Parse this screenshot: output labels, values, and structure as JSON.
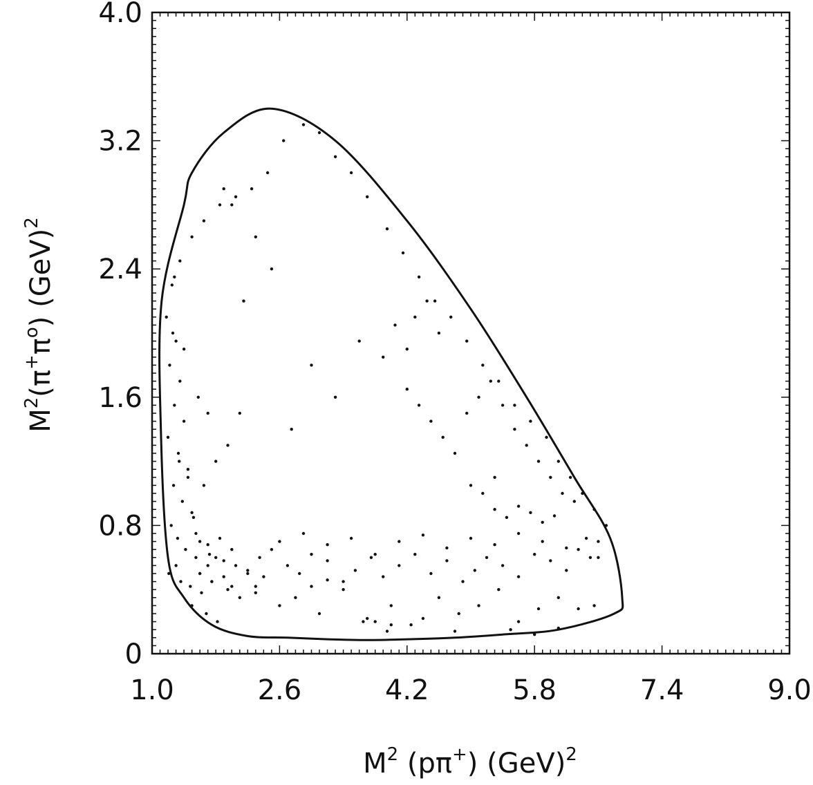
{
  "chart_data": {
    "type": "scatter",
    "title": "",
    "xlabel": {
      "base": "M",
      "sup": "2",
      "rest": " (pπ",
      "sup2": "+",
      "tail": ")  (GeV)",
      "sup3": "2"
    },
    "ylabel": {
      "base": "M",
      "sup": "2",
      "rest": "(π",
      "sup2": "+",
      "mid": "π",
      "sup3": "o",
      "tail": ")  (GeV)",
      "sup4": "2"
    },
    "xlim": [
      1.0,
      9.0
    ],
    "ylim": [
      0.0,
      4.0
    ],
    "x_ticks": [
      "1.0",
      "2.6",
      "4.2",
      "5.8",
      "7.4",
      "9.0"
    ],
    "y_ticks": [
      "0",
      "0.8",
      "1.6",
      "2.4",
      "3.2",
      "4.0"
    ],
    "grid": false,
    "boundary": {
      "x": [
        1.4,
        1.12,
        1.11,
        1.2,
        1.4,
        1.75,
        2.2,
        2.7,
        3.2,
        3.7,
        4.2,
        4.8,
        5.4,
        6.1,
        6.8,
        6.9,
        6.75,
        6.3,
        5.7,
        5.0,
        4.2,
        3.3,
        2.5,
        1.9,
        1.5
      ],
      "y": [
        2.8,
        2.2,
        1.4,
        0.6,
        0.35,
        0.18,
        0.11,
        0.1,
        0.09,
        0.085,
        0.09,
        0.1,
        0.12,
        0.15,
        0.25,
        0.35,
        0.72,
        1.1,
        1.6,
        2.15,
        2.7,
        3.2,
        3.4,
        3.25,
        3.0
      ]
    },
    "series": [
      {
        "x": [
          1.25,
          1.18,
          1.3,
          1.22,
          1.35,
          1.28,
          1.4,
          1.2,
          1.33,
          1.45,
          1.27,
          1.38,
          1.5,
          1.24,
          1.32,
          1.42,
          1.55,
          1.3,
          1.21,
          1.36,
          1.48,
          1.62,
          1.26,
          1.4,
          1.58,
          1.7,
          1.34,
          1.45,
          1.6,
          1.72,
          1.9,
          2.05,
          2.2,
          2.35,
          2.5,
          2.7,
          2.85,
          3.0,
          3.2,
          3.4,
          3.55,
          3.75,
          3.9,
          4.1,
          4.3,
          4.5,
          4.7,
          4.9,
          5.05,
          5.2,
          5.4,
          5.6,
          5.8,
          6.0,
          6.2,
          6.35,
          6.5,
          6.6,
          6.7,
          6.55,
          6.4,
          6.25,
          6.1,
          5.95,
          5.75,
          5.55,
          5.35,
          5.15,
          4.95,
          4.75,
          4.55,
          4.35,
          4.15,
          3.95,
          3.7,
          3.5,
          3.3,
          3.1,
          2.9,
          2.65,
          2.45,
          2.25,
          2.05,
          1.85,
          1.65,
          1.5,
          1.35,
          1.28,
          1.55,
          1.7,
          1.85,
          2.0,
          1.6,
          1.75,
          1.95,
          1.5,
          1.68,
          1.82,
          2.1,
          2.3,
          2.6,
          2.9,
          3.2,
          3.5,
          3.8,
          4.1,
          4.4,
          4.7,
          5.0,
          5.3,
          5.6,
          5.9,
          6.2,
          6.45,
          6.6,
          4.95,
          5.1,
          5.25,
          5.4,
          5.55,
          5.7,
          5.85,
          6.0,
          6.15,
          6.3,
          4.8,
          4.65,
          4.5,
          4.35,
          4.2,
          5.3,
          5.45,
          5.6,
          5.75,
          5.9,
          6.05,
          5.0,
          5.15,
          5.3,
          4.6,
          4.45,
          4.3,
          4.2,
          4.05,
          3.9,
          3.6,
          3.3,
          3.0,
          2.75,
          2.5,
          2.3,
          2.15,
          2.0,
          1.9,
          2.6,
          2.8,
          3.1,
          3.4,
          3.7,
          4.0,
          4.25,
          3.95,
          3.65,
          4.6,
          4.85,
          5.1,
          5.35,
          5.6,
          5.85,
          6.1,
          6.35,
          6.55,
          1.8,
          1.95,
          2.1,
          1.65,
          1.52,
          1.7,
          1.6,
          1.75,
          1.9,
          2.2,
          2.4,
          2.0,
          1.8,
          2.3,
          3.0,
          3.2,
          5.5,
          5.8,
          6.1,
          4.0,
          3.8,
          4.4,
          4.8
        ],
        "y": [
          2.3,
          2.1,
          1.95,
          1.8,
          1.7,
          1.55,
          1.45,
          1.35,
          1.25,
          1.15,
          1.05,
          0.95,
          0.88,
          0.8,
          0.72,
          0.65,
          0.6,
          0.55,
          0.5,
          0.45,
          0.42,
          0.38,
          2.0,
          1.9,
          1.6,
          1.5,
          1.2,
          1.1,
          0.7,
          0.62,
          0.58,
          0.55,
          0.52,
          0.6,
          0.65,
          0.55,
          0.5,
          0.62,
          0.58,
          0.45,
          0.52,
          0.6,
          0.48,
          0.55,
          0.62,
          0.5,
          0.58,
          0.45,
          0.52,
          0.6,
          0.55,
          0.48,
          0.62,
          0.58,
          0.52,
          0.65,
          0.6,
          0.7,
          0.8,
          0.9,
          1.0,
          1.1,
          1.2,
          1.35,
          1.45,
          1.55,
          1.7,
          1.8,
          1.95,
          2.1,
          2.2,
          2.35,
          2.5,
          2.65,
          2.85,
          3.0,
          3.1,
          3.25,
          3.3,
          3.2,
          3.0,
          2.9,
          2.85,
          2.8,
          2.7,
          2.6,
          2.45,
          2.35,
          0.75,
          0.68,
          0.72,
          0.65,
          0.5,
          0.45,
          0.4,
          0.3,
          0.25,
          0.2,
          0.35,
          0.42,
          0.7,
          0.75,
          0.68,
          0.72,
          0.62,
          0.7,
          0.74,
          0.66,
          0.72,
          0.68,
          0.75,
          0.7,
          0.66,
          0.72,
          0.6,
          1.5,
          1.6,
          1.7,
          1.55,
          1.4,
          1.3,
          1.2,
          1.1,
          1.0,
          0.95,
          1.25,
          1.35,
          1.45,
          1.55,
          1.65,
          0.9,
          0.85,
          0.92,
          0.88,
          0.82,
          0.86,
          1.05,
          1.0,
          1.1,
          2.0,
          2.2,
          2.1,
          1.9,
          2.05,
          1.85,
          1.95,
          1.6,
          1.8,
          1.4,
          2.4,
          2.6,
          2.2,
          2.8,
          2.9,
          0.3,
          0.35,
          0.25,
          0.4,
          0.22,
          0.3,
          0.18,
          0.14,
          0.2,
          0.35,
          0.25,
          0.3,
          0.4,
          0.2,
          0.28,
          0.35,
          0.28,
          0.3,
          1.2,
          1.3,
          1.5,
          1.05,
          0.85,
          0.55,
          0.5,
          0.45,
          0.48,
          0.5,
          0.48,
          0.42,
          0.6,
          0.38,
          0.42,
          0.46,
          0.15,
          0.12,
          0.16,
          0.18,
          0.2,
          0.22,
          0.14
        ]
      }
    ]
  }
}
